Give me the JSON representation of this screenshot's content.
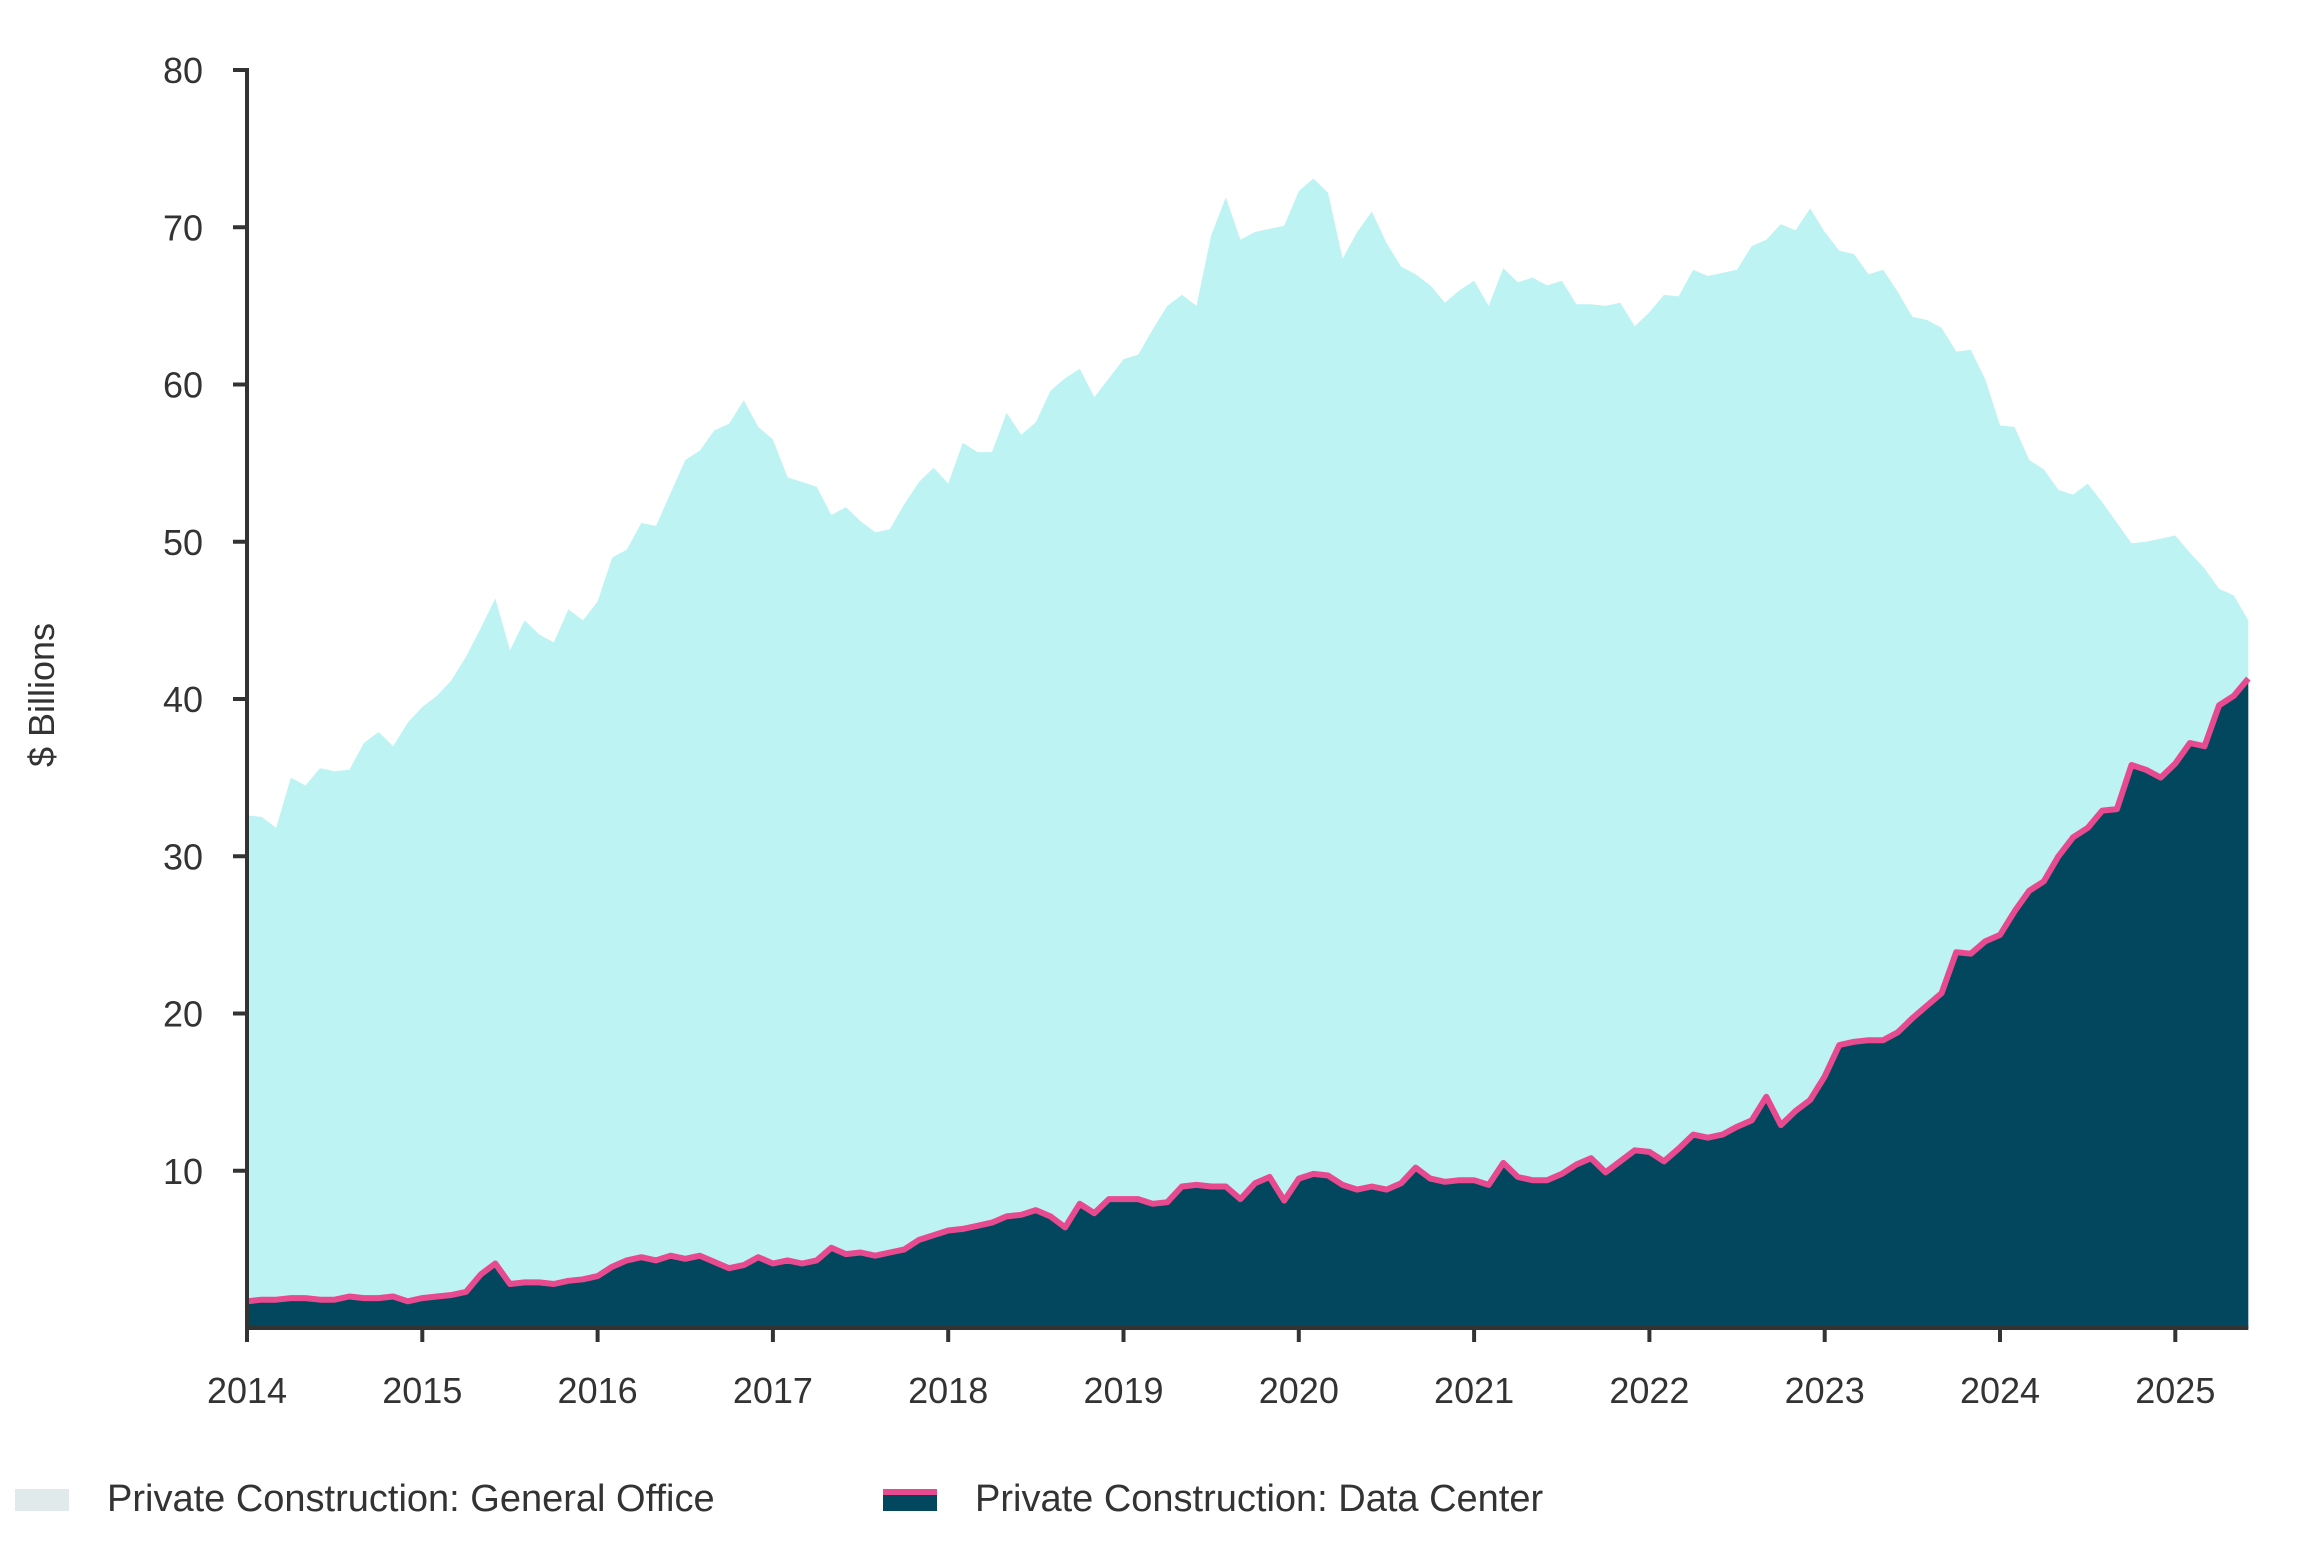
{
  "chart_data": {
    "type": "area",
    "title": "",
    "xlabel": "",
    "ylabel": "$ Billions",
    "ylim": [
      0,
      80
    ],
    "yticks": [
      "10",
      "20",
      "30",
      "40",
      "50",
      "60",
      "70",
      "80"
    ],
    "xticks": [
      "2014",
      "2015",
      "2016",
      "2017",
      "2018",
      "2019",
      "2020",
      "2021",
      "2022",
      "2023",
      "2024",
      "2025"
    ],
    "xlim": [
      "2014-01",
      "2025-06"
    ],
    "frequency": "monthly",
    "grid": false,
    "legend_position": "bottom-left",
    "x_start": "2014-01",
    "series": [
      {
        "name": "Private Construction: General Office",
        "color": "#bdf3f3",
        "legend_color": "#e1eaeb",
        "values": [
          32.6,
          32.5,
          31.8,
          35,
          34.5,
          35.6,
          35.4,
          35.5,
          37.2,
          37.9,
          37,
          38.5,
          39.5,
          40.2,
          41.2,
          42.7,
          44.5,
          46.4,
          43.1,
          45,
          44.1,
          43.6,
          45.7,
          45,
          46.2,
          49,
          49.5,
          51.2,
          51,
          53.1,
          55.2,
          55.8,
          57.1,
          57.5,
          59,
          57.3,
          56.5,
          54.1,
          53.8,
          53.5,
          51.7,
          52.2,
          51.3,
          50.6,
          50.8,
          52.4,
          53.8,
          54.7,
          53.7,
          56.3,
          55.7,
          55.7,
          58.2,
          56.8,
          57.6,
          59.6,
          60.4,
          61,
          59.2,
          60.4,
          61.6,
          61.9,
          63.5,
          65,
          65.7,
          65,
          69.5,
          71.9,
          69.2,
          69.7,
          69.9,
          70.1,
          72.3,
          73.1,
          72.2,
          68,
          69.7,
          71,
          69,
          67.5,
          67,
          66.3,
          65.2,
          66,
          66.6,
          65,
          67.4,
          66.5,
          66.8,
          66.3,
          66.6,
          65.1,
          65.1,
          65,
          65.2,
          63.7,
          64.6,
          65.7,
          65.6,
          67.3,
          66.9,
          67.1,
          67.3,
          68.8,
          69.2,
          70.2,
          69.8,
          71.2,
          69.7,
          68.5,
          68.3,
          67,
          67.3,
          65.9,
          64.3,
          64.1,
          63.6,
          62.1,
          62.2,
          60.3,
          57.4,
          57.3,
          55.2,
          54.6,
          53.3,
          53,
          53.7,
          52.5,
          51.2,
          49.9,
          50,
          50.2,
          50.4,
          49.3,
          48.3,
          47,
          46.6,
          45
        ]
      },
      {
        "name": "Private Construction: Data Center",
        "color": "#03475f",
        "line_color": "#e84a8f",
        "values": [
          1.7,
          1.8,
          1.8,
          1.9,
          1.9,
          1.8,
          1.8,
          2.0,
          1.9,
          1.9,
          2.0,
          1.7,
          1.9,
          2.0,
          2.1,
          2.3,
          3.4,
          4.1,
          2.8,
          2.9,
          2.9,
          2.8,
          3.0,
          3.1,
          3.3,
          3.9,
          4.3,
          4.5,
          4.3,
          4.6,
          4.4,
          4.6,
          4.2,
          3.8,
          4.0,
          4.5,
          4.1,
          4.3,
          4.1,
          4.3,
          5.1,
          4.7,
          4.8,
          4.6,
          4.8,
          5.0,
          5.6,
          5.9,
          6.2,
          6.3,
          6.5,
          6.7,
          7.1,
          7.2,
          7.5,
          7.1,
          6.4,
          7.9,
          7.3,
          8.2,
          8.2,
          8.2,
          7.9,
          8.0,
          9.0,
          9.1,
          9.0,
          9.0,
          8.2,
          9.2,
          9.6,
          8.1,
          9.5,
          9.8,
          9.7,
          9.1,
          8.8,
          9.0,
          8.8,
          9.2,
          10.2,
          9.5,
          9.3,
          9.4,
          9.4,
          9.1,
          10.5,
          9.6,
          9.4,
          9.4,
          9.8,
          10.4,
          10.8,
          9.9,
          10.6,
          11.3,
          11.2,
          10.6,
          11.4,
          12.3,
          12.1,
          12.3,
          12.8,
          13.2,
          14.7,
          12.9,
          13.8,
          14.5,
          16.0,
          18.0,
          18.2,
          18.3,
          18.3,
          18.8,
          19.7,
          20.5,
          21.3,
          23.9,
          23.8,
          24.6,
          25.0,
          26.5,
          27.8,
          28.4,
          30.0,
          31.2,
          31.8,
          32.9,
          33.0,
          35.8,
          35.5,
          35.0,
          35.9,
          37.2,
          37.0,
          39.6,
          40.2,
          41.3
        ]
      }
    ]
  }
}
